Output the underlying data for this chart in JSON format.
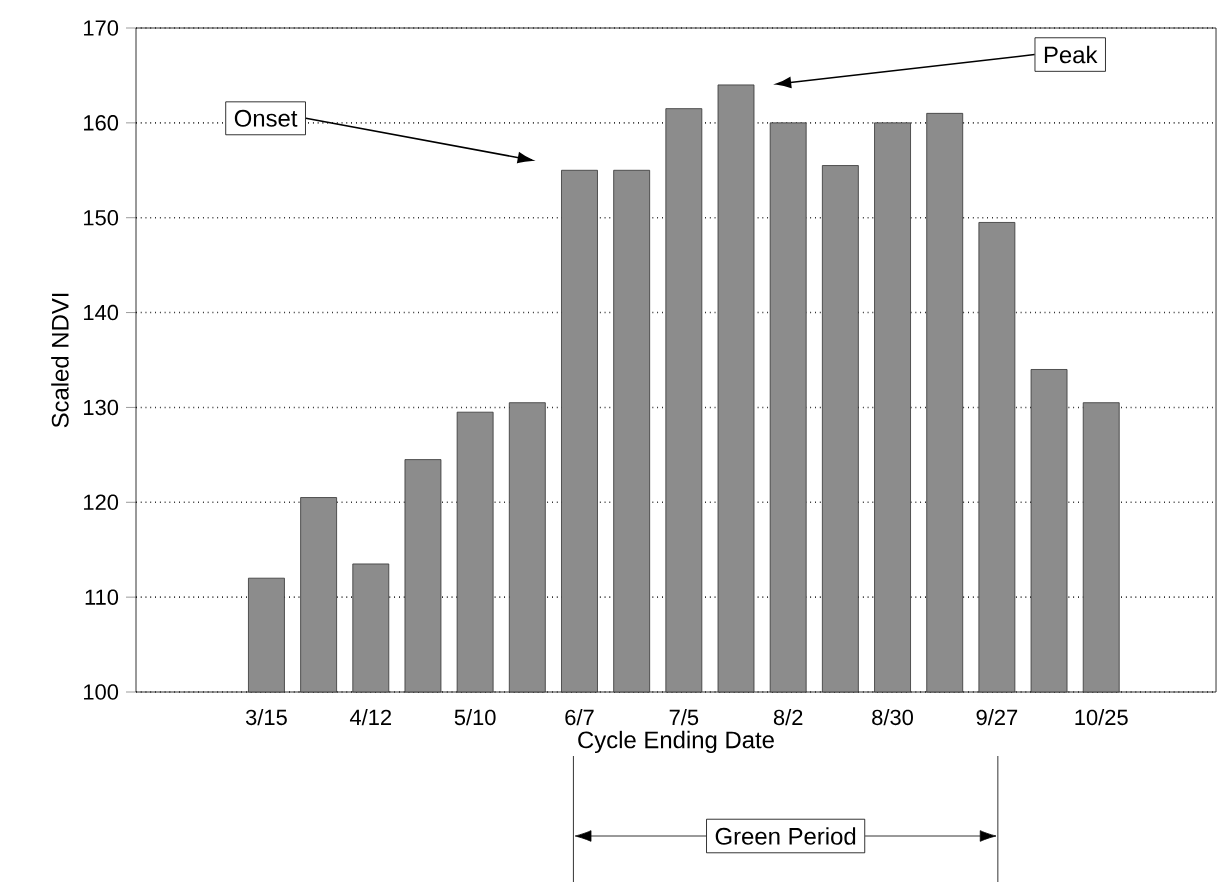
{
  "chart_data": {
    "type": "bar",
    "xlabel": "Cycle Ending Date",
    "ylabel": "Scaled NDVI",
    "categories": [
      "3/15",
      null,
      "4/12",
      null,
      "5/10",
      null,
      "6/7",
      null,
      "7/5",
      null,
      "8/2",
      null,
      "8/30",
      null,
      "9/27",
      null,
      "10/25"
    ],
    "values": [
      112,
      120.5,
      113.5,
      124.5,
      129.5,
      130.5,
      155,
      155,
      161.5,
      164,
      160,
      155.5,
      160,
      161,
      149.5,
      134,
      130.5
    ],
    "color": "#8c8c8c",
    "ylim": [
      100,
      170
    ],
    "yticks": [
      100,
      110,
      120,
      130,
      140,
      150,
      160,
      170
    ],
    "grid": "y",
    "annotations": [
      "Onset",
      "Peak",
      "Green Period"
    ]
  }
}
